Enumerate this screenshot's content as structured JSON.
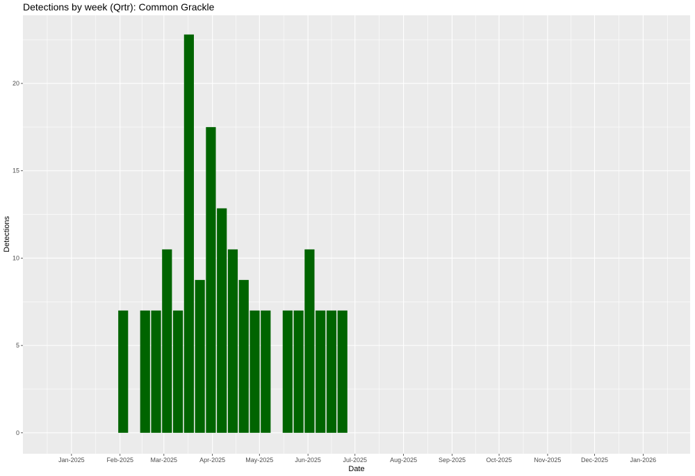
{
  "chart_data": {
    "type": "bar",
    "title": "Detections by week (Qrtr): Common Grackle",
    "xlabel": "Date",
    "ylabel": "Detections",
    "xlim": [
      "2024-12-01",
      "2026-01-31"
    ],
    "ylim": [
      -1.2,
      23.9
    ],
    "bar_width_days": 6.3,
    "x_ticks": [
      {
        "date": "2025-01-01",
        "label": "Jan-2025"
      },
      {
        "date": "2025-02-01",
        "label": "Feb-2025"
      },
      {
        "date": "2025-03-01",
        "label": "Mar-2025"
      },
      {
        "date": "2025-04-01",
        "label": "Apr-2025"
      },
      {
        "date": "2025-05-01",
        "label": "May-2025"
      },
      {
        "date": "2025-06-01",
        "label": "Jun-2025"
      },
      {
        "date": "2025-07-01",
        "label": "Jul-2025"
      },
      {
        "date": "2025-08-01",
        "label": "Aug-2025"
      },
      {
        "date": "2025-09-01",
        "label": "Sep-2025"
      },
      {
        "date": "2025-10-01",
        "label": "Oct-2025"
      },
      {
        "date": "2025-11-01",
        "label": "Nov-2025"
      },
      {
        "date": "2025-12-01",
        "label": "Dec-2025"
      },
      {
        "date": "2026-01-01",
        "label": "Jan-2026"
      }
    ],
    "y_ticks": [
      0,
      5,
      10,
      15,
      20
    ],
    "grid": true,
    "colors": {
      "bar": "#006400",
      "panel": "#ebebeb",
      "grid": "#ffffff"
    },
    "series": [
      {
        "x": [
          "2025-02-03",
          "2025-02-17",
          "2025-02-24",
          "2025-03-03",
          "2025-03-10",
          "2025-03-17",
          "2025-03-24",
          "2025-03-31",
          "2025-04-07",
          "2025-04-14",
          "2025-04-21",
          "2025-04-28",
          "2025-05-05",
          "2025-05-19",
          "2025-05-26",
          "2025-06-02",
          "2025-06-09",
          "2025-06-16",
          "2025-06-23"
        ],
        "values": [
          7,
          7,
          7,
          10.5,
          7,
          22.8,
          8.75,
          17.5,
          12.85,
          10.5,
          8.75,
          7,
          7,
          7,
          7,
          10.5,
          7,
          7,
          7
        ]
      }
    ]
  }
}
